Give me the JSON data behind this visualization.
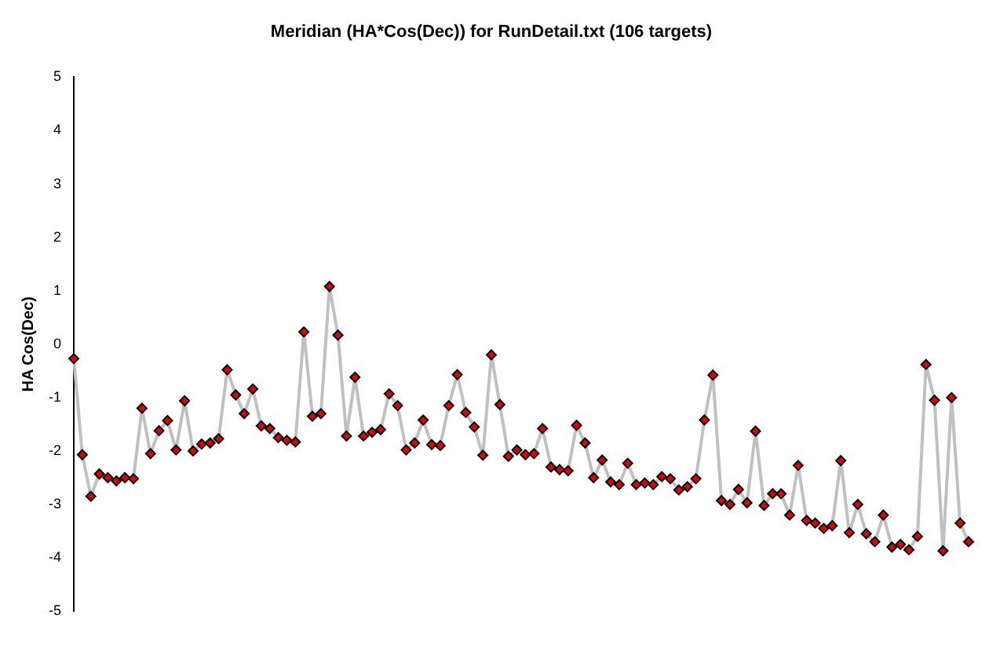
{
  "chart_data": {
    "type": "line",
    "title": "Meridian (HA*Cos(Dec)) for RunDetail.txt (106 targets)",
    "ylabel": "HA Cos(Dec)",
    "categories": [
      null,
      null,
      null,
      null,
      null,
      null,
      null,
      null,
      null,
      null,
      null,
      null,
      null,
      null,
      null,
      null,
      null,
      null,
      null,
      null,
      null,
      null,
      null,
      null,
      null,
      null,
      null,
      null,
      null,
      null,
      null,
      null,
      null,
      null,
      null,
      null,
      null,
      null,
      null,
      null,
      null,
      null,
      null,
      null,
      null,
      null,
      null,
      null,
      null,
      null,
      null,
      null,
      null,
      null,
      null,
      null,
      null,
      null,
      null,
      null,
      null,
      null,
      null,
      null,
      null,
      null,
      null,
      null,
      null,
      null,
      null,
      null,
      null,
      null,
      null,
      null,
      null,
      null,
      null,
      null,
      null,
      null,
      null,
      null,
      null,
      null,
      null,
      null,
      null,
      null,
      null,
      null,
      null,
      null,
      null,
      null,
      null,
      null,
      null,
      null,
      null,
      null,
      null,
      null,
      null,
      null
    ],
    "series": [
      {
        "color": "#c0c0c0",
        "values": [
          -0.27,
          -2.07,
          -2.85,
          -2.43,
          -2.5,
          -2.56,
          -2.5,
          -2.52,
          -1.2,
          -2.05,
          -1.62,
          -1.43,
          -1.98,
          -1.06,
          -2.0,
          -1.87,
          -1.85,
          -1.77,
          -0.48,
          -0.95,
          -1.3,
          -0.84,
          -1.53,
          -1.58,
          -1.75,
          -1.8,
          -1.83,
          0.23,
          -1.35,
          -1.3,
          1.08,
          0.17,
          -1.72,
          -0.62,
          -1.72,
          -1.65,
          -1.6,
          -0.93,
          -1.15,
          -1.98,
          -1.85,
          -1.42,
          -1.88,
          -1.9,
          -1.15,
          -0.57,
          -1.28,
          -1.55,
          -2.08,
          -0.2,
          -1.13,
          -2.1,
          -1.98,
          -2.07,
          -2.05,
          -1.58,
          -2.3,
          -2.35,
          -2.37,
          -1.52,
          -1.85,
          -2.5,
          -2.17,
          -2.58,
          -2.63,
          -2.23,
          -2.63,
          -2.6,
          -2.63,
          -2.48,
          -2.52,
          -2.73,
          -2.67,
          -2.52,
          -1.42,
          -0.58,
          -2.93,
          -3.0,
          -2.72,
          -2.97,
          -1.63,
          -3.02,
          -2.8,
          -2.8,
          -3.2,
          -2.27,
          -3.3,
          -3.35,
          -3.45,
          -3.4,
          -2.18,
          -3.53,
          -3.0,
          -3.55,
          -3.7,
          -3.2,
          -3.8,
          -3.75,
          -3.85,
          -3.6,
          -0.38,
          -1.05,
          -3.87,
          -1.0,
          -3.35,
          -3.7
        ]
      }
    ],
    "ylim": [
      -5,
      5
    ],
    "yticks": [
      -5,
      -4,
      -3,
      -2,
      -1,
      0,
      1,
      2,
      3,
      4,
      5
    ],
    "marker": "diamond",
    "line_style": "solid",
    "grid": false,
    "legend": false
  }
}
